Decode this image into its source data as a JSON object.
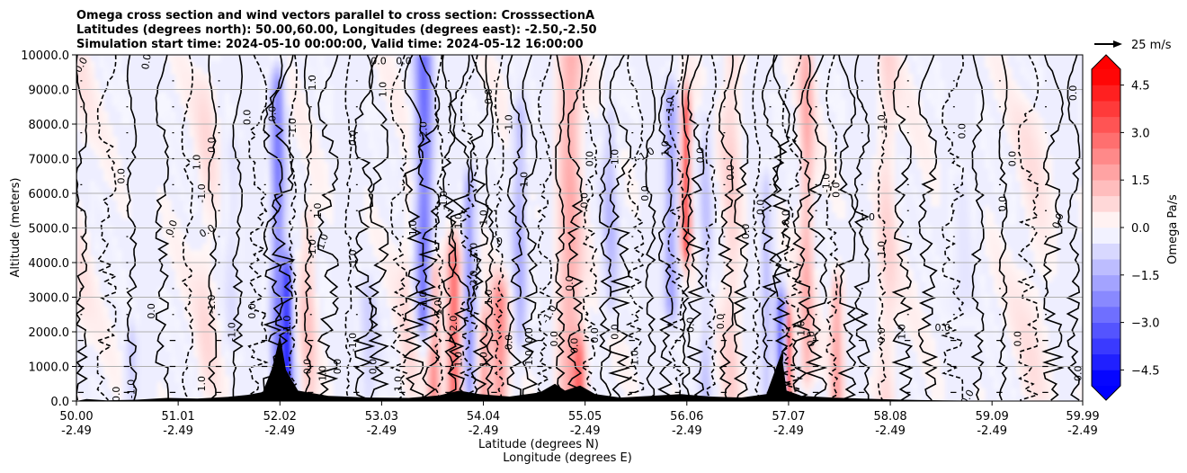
{
  "chart_data": {
    "type": "heatmap",
    "title_lines": [
      "Omega cross section and wind vectors parallel to cross section: CrosssectionA",
      "Latitudes (degrees north): 50.00,60.00, Longitudes (degrees east): -2.50,-2.50",
      "Simulation start time: 2024-05-10 00:00:00, Valid time: 2024-05-12 16:00:00"
    ],
    "xlabel_line1": "Latitude (degrees N)",
    "xlabel_line2": "Longitude (degrees E)",
    "ylabel": "Altitude (meters)",
    "xlim": [
      50.0,
      59.99
    ],
    "ylim": [
      0,
      10000
    ],
    "grid": "horizontal",
    "x_ticks": [
      {
        "lat": "50.00",
        "lon": "-2.49",
        "value": 50.0
      },
      {
        "lat": "51.01",
        "lon": "-2.49",
        "value": 51.01
      },
      {
        "lat": "52.02",
        "lon": "-2.49",
        "value": 52.02
      },
      {
        "lat": "53.03",
        "lon": "-2.49",
        "value": 53.03
      },
      {
        "lat": "54.04",
        "lon": "-2.49",
        "value": 54.04
      },
      {
        "lat": "55.05",
        "lon": "-2.49",
        "value": 55.05
      },
      {
        "lat": "56.06",
        "lon": "-2.49",
        "value": 56.06
      },
      {
        "lat": "57.07",
        "lon": "-2.49",
        "value": 57.07
      },
      {
        "lat": "58.08",
        "lon": "-2.49",
        "value": 58.08
      },
      {
        "lat": "59.09",
        "lon": "-2.49",
        "value": 59.09
      },
      {
        "lat": "59.99",
        "lon": "-2.49",
        "value": 59.99
      }
    ],
    "y_ticks": [
      {
        "label": "0.0",
        "value": 0
      },
      {
        "label": "1000.0",
        "value": 1000
      },
      {
        "label": "2000.0",
        "value": 2000
      },
      {
        "label": "3000.0",
        "value": 3000
      },
      {
        "label": "4000.0",
        "value": 4000
      },
      {
        "label": "5000.0",
        "value": 5000
      },
      {
        "label": "6000.0",
        "value": 6000
      },
      {
        "label": "7000.0",
        "value": 7000
      },
      {
        "label": "8000.0",
        "value": 8000
      },
      {
        "label": "9000.0",
        "value": 9000
      },
      {
        "label": "10000.0",
        "value": 10000
      }
    ],
    "colorbar": {
      "label": "Omega Pa/s",
      "range": [
        -5.0,
        5.0
      ],
      "ticks": [
        {
          "label": "4.5",
          "value": 4.5
        },
        {
          "label": "3.0",
          "value": 3.0
        },
        {
          "label": "1.5",
          "value": 1.5
        },
        {
          "label": "0.0",
          "value": 0.0
        },
        {
          "label": "−1.5",
          "value": -1.5
        },
        {
          "label": "−3.0",
          "value": -3.0
        },
        {
          "label": "−4.5",
          "value": -4.5
        }
      ],
      "positive_color": "#ff0000",
      "negative_color": "#0000ff",
      "neutral_color": "#ffffff"
    },
    "vector_key": {
      "label": "25 m/s"
    },
    "contour_labels": [
      {
        "text": "0.0",
        "lat": 50.05,
        "alt": 9700,
        "rot": -60
      },
      {
        "text": "0.0",
        "lat": 50.4,
        "alt": 200,
        "rot": -90
      },
      {
        "text": "-1.0",
        "lat": 50.55,
        "alt": 350,
        "rot": -90
      },
      {
        "text": "0.0",
        "lat": 50.45,
        "alt": 6500,
        "rot": -90
      },
      {
        "text": "0.0",
        "lat": 50.7,
        "alt": 9800,
        "rot": -80
      },
      {
        "text": "0.0",
        "lat": 50.75,
        "alt": 2600,
        "rot": -90
      },
      {
        "text": "0.0",
        "lat": 50.95,
        "alt": 5000,
        "rot": -70
      },
      {
        "text": "-1.0",
        "lat": 51.25,
        "alt": 6000,
        "rot": -90
      },
      {
        "text": "1.0",
        "lat": 51.2,
        "alt": 6900,
        "rot": -90
      },
      {
        "text": "0.0",
        "lat": 51.3,
        "alt": 4900,
        "rot": -30
      },
      {
        "text": "0.0",
        "lat": 51.35,
        "alt": 7400,
        "rot": -90
      },
      {
        "text": "-1.0",
        "lat": 51.35,
        "alt": 2800,
        "rot": -90
      },
      {
        "text": "-1.0",
        "lat": 51.55,
        "alt": 2000,
        "rot": -90
      },
      {
        "text": "0.0",
        "lat": 51.7,
        "alt": 8200,
        "rot": -90
      },
      {
        "text": "0.0",
        "lat": 51.75,
        "alt": 2600,
        "rot": -90
      },
      {
        "text": "1.0",
        "lat": 51.25,
        "alt": 500,
        "rot": -90
      },
      {
        "text": "0.0",
        "lat": 51.95,
        "alt": 8300,
        "rot": -90
      },
      {
        "text": "-1.0",
        "lat": 52.1,
        "alt": 2200,
        "rot": -90
      },
      {
        "text": "-1.0",
        "lat": 52.15,
        "alt": 7900,
        "rot": -90
      },
      {
        "text": "1.0",
        "lat": 52.4,
        "alt": 5500,
        "rot": -90
      },
      {
        "text": "-1.0",
        "lat": 52.35,
        "alt": 4400,
        "rot": -90
      },
      {
        "text": "0.0",
        "lat": 52.3,
        "alt": 1000,
        "rot": -90
      },
      {
        "text": "1.0",
        "lat": 52.45,
        "alt": 4600,
        "rot": -70
      },
      {
        "text": "1.0",
        "lat": 52.35,
        "alt": 9200,
        "rot": -90
      },
      {
        "text": "1.0",
        "lat": 52.45,
        "alt": 800,
        "rot": -90
      },
      {
        "text": "0.0",
        "lat": 52.6,
        "alt": 1000,
        "rot": -90
      },
      {
        "text": "-1.0",
        "lat": 52.75,
        "alt": 1700,
        "rot": -90
      },
      {
        "text": "-1.0",
        "lat": 52.75,
        "alt": 4100,
        "rot": -90
      },
      {
        "text": "0.0",
        "lat": 52.75,
        "alt": 7600,
        "rot": -90
      },
      {
        "text": "0.0",
        "lat": 52.95,
        "alt": 1000,
        "rot": -90
      },
      {
        "text": "1.0",
        "lat": 53.05,
        "alt": 9000,
        "rot": -90
      },
      {
        "text": "0.0",
        "lat": 53.0,
        "alt": 9800,
        "rot": 0
      },
      {
        "text": "0.0",
        "lat": 53.25,
        "alt": 9800,
        "rot": 0
      },
      {
        "text": "1.0",
        "lat": 53.2,
        "alt": 500,
        "rot": -90
      },
      {
        "text": "1.0",
        "lat": 53.35,
        "alt": 5000,
        "rot": -90
      },
      {
        "text": "-1.0",
        "lat": 53.45,
        "alt": 2900,
        "rot": -90
      },
      {
        "text": "-2.0",
        "lat": 53.45,
        "alt": 7800,
        "rot": -90
      },
      {
        "text": "1.0",
        "lat": 53.6,
        "alt": 2700,
        "rot": -90
      },
      {
        "text": "-1.0",
        "lat": 53.65,
        "alt": 5800,
        "rot": -90
      },
      {
        "text": "1.0",
        "lat": 53.8,
        "alt": 5200,
        "rot": -90
      },
      {
        "text": "-2.0",
        "lat": 53.75,
        "alt": 2200,
        "rot": -90
      },
      {
        "text": "1.0",
        "lat": 53.8,
        "alt": 1200,
        "rot": -90
      },
      {
        "text": "-1.0",
        "lat": 53.95,
        "alt": 4300,
        "rot": -90
      },
      {
        "text": "1.0",
        "lat": 54.05,
        "alt": 5300,
        "rot": -90
      },
      {
        "text": "-2.0",
        "lat": 53.95,
        "alt": 3500,
        "rot": -90
      },
      {
        "text": "1.0",
        "lat": 54.1,
        "alt": 3000,
        "rot": -90
      },
      {
        "text": "0.0",
        "lat": 54.1,
        "alt": 8800,
        "rot": -90
      },
      {
        "text": "1.0",
        "lat": 54.05,
        "alt": 1200,
        "rot": -90
      },
      {
        "text": "0",
        "lat": 54.2,
        "alt": 4600,
        "rot": 0
      },
      {
        "text": "-1.0",
        "lat": 54.3,
        "alt": 8000,
        "rot": -90
      },
      {
        "text": "0.0",
        "lat": 54.3,
        "alt": 1700,
        "rot": -90
      },
      {
        "text": "1.0",
        "lat": 54.45,
        "alt": 6400,
        "rot": -90
      },
      {
        "text": "-1.0",
        "lat": 54.5,
        "alt": 1200,
        "rot": -90
      },
      {
        "text": "0.0",
        "lat": 54.5,
        "alt": 1900,
        "rot": -90
      },
      {
        "text": "0.0",
        "lat": 54.75,
        "alt": 1800,
        "rot": -90
      },
      {
        "text": "-1.0",
        "lat": 54.7,
        "alt": 2500,
        "rot": -60
      },
      {
        "text": "0.0",
        "lat": 54.95,
        "alt": 1600,
        "rot": -90
      },
      {
        "text": "0.0",
        "lat": 54.9,
        "alt": 3400,
        "rot": -90
      },
      {
        "text": "0.0",
        "lat": 55.1,
        "alt": 7000,
        "rot": -90
      },
      {
        "text": "0.0",
        "lat": 55.05,
        "alt": 5800,
        "rot": -90
      },
      {
        "text": "0.0",
        "lat": 55.15,
        "alt": 1900,
        "rot": -90
      },
      {
        "text": "-1.0",
        "lat": 55.35,
        "alt": 7000,
        "rot": -90
      },
      {
        "text": "0.0",
        "lat": 55.35,
        "alt": 2000,
        "rot": -90
      },
      {
        "text": "-1.0",
        "lat": 55.55,
        "alt": 1200,
        "rot": -90
      },
      {
        "text": "-1.0",
        "lat": 55.65,
        "alt": 7100,
        "rot": -30
      },
      {
        "text": "0.0",
        "lat": 55.65,
        "alt": 6000,
        "rot": -90
      },
      {
        "text": "-1.0",
        "lat": 55.9,
        "alt": 8500,
        "rot": -90
      },
      {
        "text": "1.0",
        "lat": 55.85,
        "alt": 7300,
        "rot": -90
      },
      {
        "text": "0.0",
        "lat": 56.1,
        "alt": 2200,
        "rot": -90
      },
      {
        "text": "0.0",
        "lat": 56.2,
        "alt": 7100,
        "rot": -90
      },
      {
        "text": "0.0",
        "lat": 56.5,
        "alt": 6600,
        "rot": -90
      },
      {
        "text": "0.0",
        "lat": 56.4,
        "alt": 2300,
        "rot": -90
      },
      {
        "text": "0.0",
        "lat": 56.65,
        "alt": 4900,
        "rot": -90
      },
      {
        "text": "0.0",
        "lat": 56.8,
        "alt": 5600,
        "rot": -90
      },
      {
        "text": "0.0",
        "lat": 57.05,
        "alt": 5300,
        "rot": -90
      },
      {
        "text": "1.0",
        "lat": 57.2,
        "alt": 2100,
        "rot": -90
      },
      {
        "text": "0.0",
        "lat": 57.3,
        "alt": 1800,
        "rot": -90
      },
      {
        "text": "-1.0",
        "lat": 57.45,
        "alt": 6300,
        "rot": -90
      },
      {
        "text": "0.0",
        "lat": 57.55,
        "alt": 6100,
        "rot": -90
      },
      {
        "text": "1.0",
        "lat": 57.85,
        "alt": 5300,
        "rot": 0
      },
      {
        "text": "1.0",
        "lat": 58.0,
        "alt": 4400,
        "rot": -90
      },
      {
        "text": "-1.0",
        "lat": 58.0,
        "alt": 8000,
        "rot": -90
      },
      {
        "text": "0.0",
        "lat": 58.0,
        "alt": 1900,
        "rot": -90
      },
      {
        "text": "1.0",
        "lat": 58.2,
        "alt": 2000,
        "rot": -90
      },
      {
        "text": "0.0",
        "lat": 58.6,
        "alt": 2100,
        "rot": 0
      },
      {
        "text": "0.0",
        "lat": 58.8,
        "alt": 7800,
        "rot": -90
      },
      {
        "text": "0.0",
        "lat": 58.85,
        "alt": 100,
        "rot": -60
      },
      {
        "text": "0.0",
        "lat": 59.2,
        "alt": 5700,
        "rot": -90
      },
      {
        "text": "0.0",
        "lat": 59.3,
        "alt": 7000,
        "rot": -90
      },
      {
        "text": "0.0",
        "lat": 59.35,
        "alt": 1800,
        "rot": -90
      },
      {
        "text": "0.0",
        "lat": 59.75,
        "alt": 5200,
        "rot": -70
      },
      {
        "text": "0.0",
        "lat": 59.9,
        "alt": 8900,
        "rot": -90
      },
      {
        "text": "0.0",
        "lat": 59.95,
        "alt": 800,
        "rot": -90
      }
    ]
  }
}
